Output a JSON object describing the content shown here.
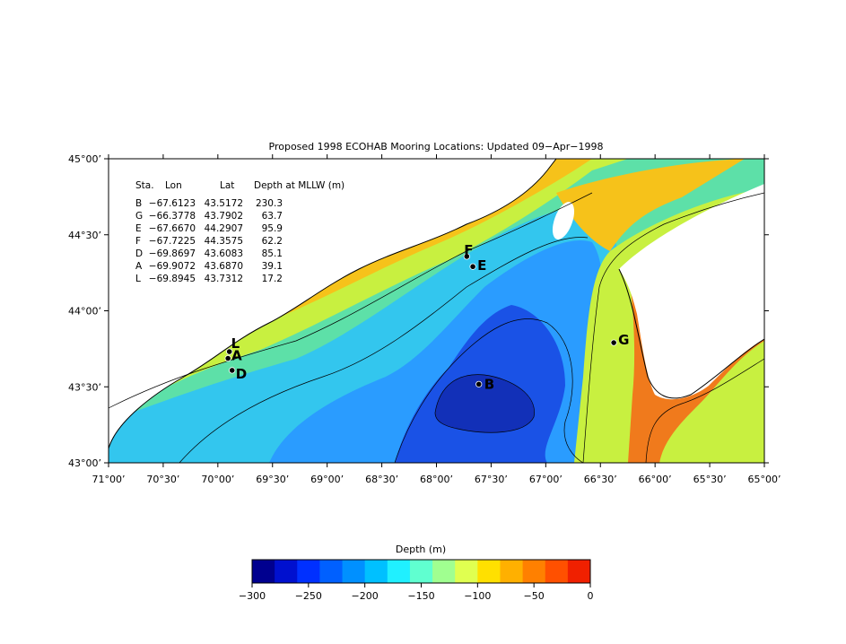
{
  "title": "Proposed 1998 ECOHAB Mooring Locations: Updated 09−Apr−1998",
  "map": {
    "lon_range": [
      -71.0,
      -65.0
    ],
    "lat_range": [
      43.0,
      45.0
    ],
    "x_ticks": [
      {
        "label": "71°00’",
        "lon": -71.0
      },
      {
        "label": "70°30’",
        "lon": -70.5
      },
      {
        "label": "70°00’",
        "lon": -70.0
      },
      {
        "label": "69°30’",
        "lon": -69.5
      },
      {
        "label": "69°00’",
        "lon": -69.0
      },
      {
        "label": "68°30’",
        "lon": -68.5
      },
      {
        "label": "68°00’",
        "lon": -68.0
      },
      {
        "label": "67°30’",
        "lon": -67.5
      },
      {
        "label": "67°00’",
        "lon": -67.0
      },
      {
        "label": "66°30’",
        "lon": -66.5
      },
      {
        "label": "66°00’",
        "lon": -66.0
      },
      {
        "label": "65°30’",
        "lon": -65.5
      },
      {
        "label": "65°00’",
        "lon": -65.0
      }
    ],
    "y_ticks": [
      {
        "label": "45°00’",
        "lat": 45.0
      },
      {
        "label": "44°30’",
        "lat": 44.5
      },
      {
        "label": "44°00’",
        "lat": 44.0
      },
      {
        "label": "43°30’",
        "lat": 43.5
      },
      {
        "label": "43°00’",
        "lat": 43.0
      }
    ]
  },
  "stations_table": {
    "headers": [
      "Sta.",
      "Lon",
      "Lat",
      "Depth at MLLW (m)"
    ],
    "rows": [
      {
        "sta": "B",
        "lon": "−67.6123",
        "lat": "43.5172",
        "depth": "230.3"
      },
      {
        "sta": "G",
        "lon": "−66.3778",
        "lat": "43.7902",
        "depth": "63.7"
      },
      {
        "sta": "E",
        "lon": "−67.6670",
        "lat": "44.2907",
        "depth": "95.9"
      },
      {
        "sta": "F",
        "lon": "−67.7225",
        "lat": "44.3575",
        "depth": "62.2"
      },
      {
        "sta": "D",
        "lon": "−69.8697",
        "lat": "43.6083",
        "depth": "85.1"
      },
      {
        "sta": "A",
        "lon": "−69.9072",
        "lat": "43.6870",
        "depth": "39.1"
      },
      {
        "sta": "L",
        "lon": "−69.8945",
        "lat": "43.7312",
        "depth": "17.2"
      }
    ]
  },
  "stations": [
    {
      "id": "B",
      "lon": -67.6123,
      "lat": 43.5172
    },
    {
      "id": "G",
      "lon": -66.3778,
      "lat": 43.7902
    },
    {
      "id": "E",
      "lon": -67.667,
      "lat": 44.2907
    },
    {
      "id": "F",
      "lon": -67.7225,
      "lat": 44.3575
    },
    {
      "id": "D",
      "lon": -69.8697,
      "lat": 43.6083
    },
    {
      "id": "A",
      "lon": -69.9072,
      "lat": 43.687
    },
    {
      "id": "L",
      "lon": -69.8945,
      "lat": 43.7312
    }
  ],
  "colorbar": {
    "title": "Depth (m)",
    "range": [
      -300,
      0
    ],
    "tick_labels": [
      "−300",
      "−250",
      "−200",
      "−150",
      "−100",
      "−50",
      "0"
    ],
    "tick_values": [
      -300,
      -250,
      -200,
      -150,
      -100,
      -50,
      0
    ],
    "colors": [
      "#00008f",
      "#0010cf",
      "#0030ff",
      "#0060ff",
      "#0090ff",
      "#00c0ff",
      "#20f0ff",
      "#60ffd0",
      "#a0ff90",
      "#e0ff50",
      "#ffe000",
      "#ffb000",
      "#ff8000",
      "#ff5000",
      "#f02000"
    ]
  },
  "palette": {
    "deep": "#1a3fd6",
    "mid_deep": "#2a7fff",
    "mid": "#33c6ee",
    "shelf": "#5de0a8",
    "shallow": "#c8f040",
    "coast": "#f6c21a",
    "near_shore": "#f07a1c",
    "land": "#ffffff"
  }
}
